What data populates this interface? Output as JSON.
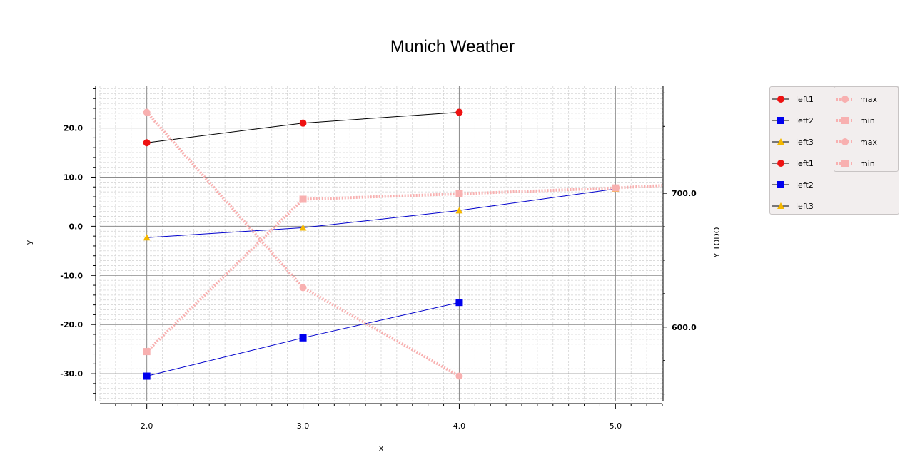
{
  "chart_data": {
    "type": "line",
    "title": "Munich Weather",
    "xlabel": "x",
    "ylabel": "y",
    "y2label": "Y TODO",
    "xlim": [
      1.7,
      5.3
    ],
    "ylim": [
      -35.5,
      28.5
    ],
    "y2lim": [
      545,
      780
    ],
    "x_ticks": [
      "2.0",
      "3.0",
      "4.0",
      "5.0"
    ],
    "y_ticks": [
      "20.0",
      "10.0",
      "0.0",
      "-10.0",
      "-20.0",
      "-30.0"
    ],
    "y2_ticks": [
      "700.0",
      "600.0"
    ],
    "grid": true,
    "series": [
      {
        "name": "left1",
        "axis": "left",
        "color": "#000000",
        "marker_color": "#ee1111",
        "marker": "circle",
        "style": "solid",
        "x": [
          2.0,
          3.0,
          4.0
        ],
        "y": [
          17.0,
          21.0,
          23.2
        ]
      },
      {
        "name": "left2",
        "axis": "left",
        "color": "#0000cc",
        "marker_color": "#0000ee",
        "marker": "square",
        "style": "solid",
        "x": [
          2.0,
          3.0,
          4.0
        ],
        "y": [
          -30.5,
          -22.7,
          -15.5
        ]
      },
      {
        "name": "left3",
        "axis": "left",
        "color": "#0000cc",
        "marker_color": "#f5b800",
        "marker": "triangle",
        "style": "solid",
        "x": [
          2.0,
          3.0,
          4.0,
          5.0
        ],
        "y": [
          -2.3,
          -0.3,
          3.2,
          7.6
        ]
      },
      {
        "name": "max",
        "axis": "left",
        "color": "#f8b0b0",
        "marker_color": "#f8b0b0",
        "marker": "circle",
        "style": "dotted",
        "x": [
          2.0,
          3.0,
          4.0
        ],
        "y": [
          23.2,
          -12.5,
          -30.5
        ]
      },
      {
        "name": "min",
        "axis": "left",
        "color": "#f8b0b0",
        "marker_color": "#f8b0b0",
        "marker": "square",
        "style": "dotted",
        "x": [
          2.0,
          3.0,
          4.0,
          5.0,
          5.3
        ],
        "y": [
          -25.5,
          5.5,
          6.6,
          7.8,
          8.3
        ]
      }
    ],
    "legend": {
      "placement": "right",
      "left_entries": [
        {
          "label": "left1",
          "color": "#000000",
          "marker_color": "#ee1111",
          "marker": "circle",
          "style": "solid"
        },
        {
          "label": "left2",
          "color": "#000000",
          "marker_color": "#0000ee",
          "marker": "square",
          "style": "solid"
        },
        {
          "label": "left3",
          "color": "#000000",
          "marker_color": "#f5b800",
          "marker": "triangle",
          "style": "solid"
        },
        {
          "label": "left1",
          "color": "#000000",
          "marker_color": "#ee1111",
          "marker": "circle",
          "style": "solid"
        },
        {
          "label": "left2",
          "color": "#000000",
          "marker_color": "#0000ee",
          "marker": "square",
          "style": "solid"
        },
        {
          "label": "left3",
          "color": "#000000",
          "marker_color": "#f5b800",
          "marker": "triangle",
          "style": "solid"
        }
      ],
      "right_entries": [
        {
          "label": "max",
          "color": "#f8b0b0",
          "marker_color": "#f8b0b0",
          "marker": "circle",
          "style": "dotted"
        },
        {
          "label": "min",
          "color": "#f8b0b0",
          "marker_color": "#f8b0b0",
          "marker": "square",
          "style": "dotted"
        },
        {
          "label": "max",
          "color": "#f8b0b0",
          "marker_color": "#f8b0b0",
          "marker": "circle",
          "style": "dotted"
        },
        {
          "label": "min",
          "color": "#f8b0b0",
          "marker_color": "#f8b0b0",
          "marker": "square",
          "style": "dotted"
        }
      ]
    }
  }
}
